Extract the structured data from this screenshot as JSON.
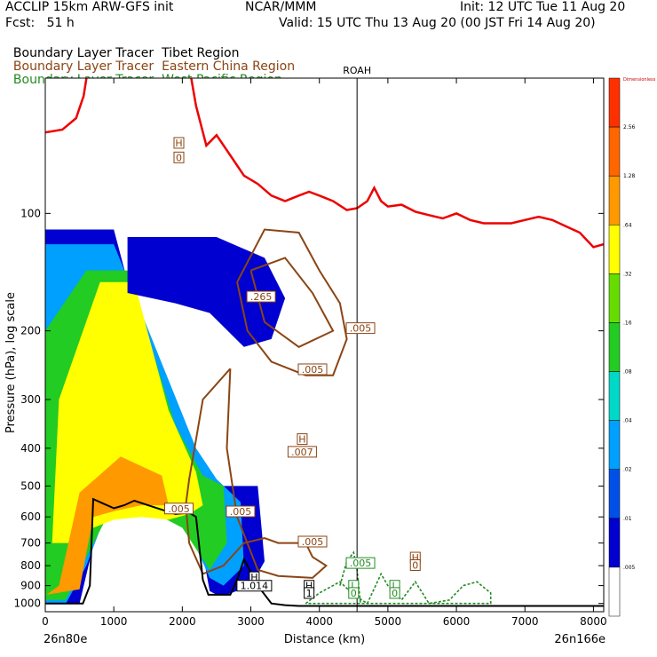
{
  "header": {
    "model": "ACCLIP 15km ARW-GFS init",
    "org": "NCAR/MMM",
    "init": "Init: 12 UTC Tue 11 Aug 20",
    "fcst": "Fcst:   51 h",
    "valid": "Valid: 15 UTC Thu 13 Aug 20 (00 JST Fri 14 Aug 20)"
  },
  "legend_lines": [
    {
      "prefix": "Boundary Layer Tracer",
      "region": "Tibet Region",
      "color": "#000000"
    },
    {
      "prefix": "Boundary Layer Tracer",
      "region": "Eastern China Region",
      "color": "#8b4513"
    },
    {
      "prefix": "Boundary Layer Tracer",
      "region": "West Pacific Region",
      "color": "#228b22"
    }
  ],
  "chart_data": {
    "type": "area",
    "title": "",
    "xlabel": "Distance (km)",
    "ylabel": "Pressure (hPa), log scale",
    "x_range": [
      0,
      8150
    ],
    "y_range_hPa": [
      1050,
      45
    ],
    "y_scale": "log",
    "xticks": [
      "0",
      "1000",
      "2000",
      "3000",
      "4000",
      "5000",
      "6000",
      "7000",
      "8000"
    ],
    "yticks": [
      "100",
      "200",
      "300",
      "400",
      "500",
      "600",
      "700",
      "800",
      "900",
      "1000"
    ],
    "endpoints": {
      "left": "26n80e",
      "right": "26n166e"
    },
    "station": {
      "name": "ROAH",
      "x": 4550
    },
    "colorbar": {
      "labels": [
        "Dimensionless",
        "2.56",
        "1.28",
        ".64",
        ".32",
        ".16",
        ".08",
        ".04",
        ".02",
        ".01",
        ".005"
      ],
      "colors": [
        "#ff3000",
        "#ff6600",
        "#ff9900",
        "#ffff00",
        "#66dd00",
        "#22cc22",
        "#00d8c8",
        "#00a0ff",
        "#0050e8",
        "#0000d0",
        "#ffffff"
      ],
      "top_label_color": "#cc0000"
    },
    "tropopause": {
      "color": "#ee0000",
      "x": [
        0,
        250,
        450,
        560,
        700,
        850,
        1000,
        1200,
        1400,
        1600,
        1750,
        1900,
        2000,
        2100,
        2200,
        2350,
        2500,
        2700,
        2900,
        3100,
        3300,
        3500,
        3700,
        3850,
        4000,
        4200,
        4400,
        4550,
        4700,
        4800,
        4900,
        5000,
        5200,
        5400,
        5600,
        5800,
        6000,
        6200,
        6400,
        6600,
        6800,
        7000,
        7200,
        7400,
        7600,
        7800,
        8000,
        8150
      ],
      "hPa": [
        62,
        61,
        57,
        50,
        35,
        25,
        25,
        25,
        25,
        25,
        25,
        28,
        35,
        42,
        53,
        67,
        63,
        71,
        80,
        84,
        90,
        93,
        90,
        88,
        90,
        93,
        98,
        97,
        93,
        86,
        93,
        96,
        95,
        99,
        101,
        103,
        100,
        104,
        106,
        106,
        106,
        104,
        102,
        104,
        108,
        112,
        122,
        120
      ]
    },
    "terrain": {
      "color": "#000000",
      "x": [
        0,
        200,
        400,
        550,
        650,
        700,
        850,
        1000,
        1150,
        1300,
        1500,
        1700,
        1900,
        2100,
        2200,
        2300,
        2380,
        2450,
        2600,
        2700,
        2800,
        2900,
        3100,
        3300,
        3500,
        3700,
        4000,
        4300,
        4600,
        5000,
        6000,
        7000,
        8150
      ],
      "hPa": [
        1000,
        1000,
        1000,
        1000,
        900,
        540,
        555,
        570,
        560,
        545,
        560,
        575,
        590,
        585,
        600,
        870,
        950,
        950,
        950,
        950,
        870,
        770,
        900,
        1000,
        1010,
        1015,
        1015,
        1015,
        1015,
        1015,
        1015,
        1015,
        1015
      ]
    },
    "tibet_tracer_bands": [
      {
        "level": ".01",
        "x": [
          0,
          300,
          500,
          800,
          1100,
          1500,
          1900,
          2200,
          2400,
          2500,
          2550,
          2650,
          3000,
          3200,
          3100,
          2500,
          2100,
          1000,
          0
        ],
        "hPa": [
          1000,
          1000,
          1000,
          600,
          570,
          580,
          590,
          600,
          930,
          950,
          950,
          950,
          900,
          780,
          500,
          500,
          590,
          110,
          110
        ]
      },
      {
        "level": ".04",
        "x": [
          0,
          300,
          600,
          900,
          1300,
          1700,
          2000,
          2400,
          2600,
          2900,
          2850,
          2500,
          2200,
          1000,
          0
        ],
        "hPa": [
          1000,
          1000,
          800,
          580,
          580,
          590,
          600,
          860,
          900,
          800,
          550,
          480,
          400,
          120,
          120
        ]
      },
      {
        "level": ".16",
        "x": [
          0,
          300,
          600,
          900,
          1300,
          1700,
          2000,
          2400,
          2650,
          2600,
          2300,
          1900,
          1200,
          600,
          0
        ],
        "hPa": [
          980,
          980,
          760,
          600,
          590,
          600,
          640,
          820,
          700,
          500,
          470,
          350,
          140,
          140,
          200
        ]
      },
      {
        "level": ".32",
        "x": [
          100,
          400,
          700,
          1000,
          1400,
          1800,
          2100,
          2300,
          2200,
          1800,
          1300,
          800,
          200
        ],
        "hPa": [
          700,
          700,
          640,
          610,
          600,
          610,
          590,
          560,
          460,
          320,
          150,
          150,
          300
        ]
      },
      {
        "level": ".64",
        "x": [
          20,
          500,
          700,
          1000,
          1400,
          1800,
          1700,
          1100,
          500,
          200
        ],
        "hPa": [
          950,
          920,
          600,
          580,
          560,
          560,
          470,
          420,
          520,
          900
        ]
      }
    ],
    "tibet_upper_band": {
      "level": ".01",
      "x": [
        1200,
        2500,
        3200,
        3500,
        3300,
        2900,
        2400,
        1900,
        1200
      ],
      "hPa": [
        115,
        115,
        130,
        165,
        210,
        220,
        180,
        170,
        160
      ]
    },
    "eastern_china_contours": [
      {
        "x": [
          2800,
          3200,
          3700,
          4000,
          4300,
          4400,
          4200,
          3800,
          3300,
          2950,
          2800
        ],
        "hPa": [
          150,
          110,
          112,
          140,
          170,
          210,
          260,
          260,
          240,
          200,
          150
        ]
      },
      {
        "x": [
          2700,
          2300,
          2200,
          2100,
          2050,
          2100,
          2300,
          2600,
          2900,
          3200,
          3400,
          3800,
          3900,
          4100,
          3900,
          3400,
          3100,
          2800,
          2650,
          2700
        ],
        "hPa": [
          250,
          300,
          380,
          480,
          560,
          700,
          840,
          800,
          700,
          680,
          700,
          700,
          760,
          800,
          860,
          850,
          820,
          600,
          400,
          250
        ]
      },
      {
        "x": [
          3000,
          3500,
          3900,
          4200,
          3700,
          3200,
          3000
        ],
        "hPa": [
          140,
          130,
          160,
          200,
          220,
          190,
          140
        ]
      }
    ],
    "west_pacific_contours": [
      {
        "x": [
          3800,
          4000,
          4300,
          4500,
          4700,
          4900,
          5000,
          5200,
          5400,
          5600,
          5900,
          6100,
          6300,
          6500,
          6500,
          6000,
          5500,
          5000,
          4500,
          4000,
          3800
        ],
        "hPa": [
          1000,
          940,
          880,
          950,
          1000,
          840,
          900,
          980,
          880,
          1000,
          980,
          900,
          880,
          940,
          1000,
          1000,
          1000,
          1000,
          1000,
          1000,
          1000
        ]
      },
      {
        "x": [
          4300,
          4400,
          4500,
          4550,
          4600
        ],
        "hPa": [
          900,
          780,
          740,
          820,
          1000
        ]
      }
    ],
    "contour_labels": [
      {
        "text": "H",
        "x": 1950,
        "hPa": 67,
        "color": "#8b4513"
      },
      {
        "text": "0",
        "x": 1950,
        "hPa": 73,
        "color": "#8b4513"
      },
      {
        "text": ".265",
        "x": 3150,
        "hPa": 166,
        "color": "#8b4513"
      },
      {
        "text": ".005",
        "x": 4600,
        "hPa": 200,
        "color": "#8b4513"
      },
      {
        "text": ".005",
        "x": 3900,
        "hPa": 255,
        "color": "#8b4513"
      },
      {
        "text": "H",
        "x": 3750,
        "hPa": 385,
        "color": "#8b4513"
      },
      {
        "text": ".007",
        "x": 3750,
        "hPa": 415,
        "color": "#8b4513"
      },
      {
        "text": ".005",
        "x": 1950,
        "hPa": 580,
        "color": "#8b4513"
      },
      {
        "text": ".005",
        "x": 2850,
        "hPa": 590,
        "color": "#8b4513"
      },
      {
        "text": ".005",
        "x": 3900,
        "hPa": 705,
        "color": "#8b4513"
      },
      {
        "text": ".005",
        "x": 4600,
        "hPa": 800,
        "color": "#228b22"
      },
      {
        "text": "H",
        "x": 5400,
        "hPa": 775,
        "color": "#8b4513"
      },
      {
        "text": "0",
        "x": 5400,
        "hPa": 810,
        "color": "#8b4513"
      },
      {
        "text": "H",
        "x": 3050,
        "hPa": 870,
        "color": "#000000"
      },
      {
        "text": "1.014",
        "x": 3050,
        "hPa": 915,
        "color": "#000000"
      },
      {
        "text": "H",
        "x": 3850,
        "hPa": 915,
        "color": "#000000"
      },
      {
        "text": "1",
        "x": 3850,
        "hPa": 955,
        "color": "#000000"
      },
      {
        "text": "L",
        "x": 4500,
        "hPa": 915,
        "color": "#228b22"
      },
      {
        "text": "0",
        "x": 4500,
        "hPa": 955,
        "color": "#228b22"
      },
      {
        "text": "L",
        "x": 5100,
        "hPa": 915,
        "color": "#228b22"
      },
      {
        "text": "0",
        "x": 5100,
        "hPa": 955,
        "color": "#228b22"
      }
    ]
  }
}
